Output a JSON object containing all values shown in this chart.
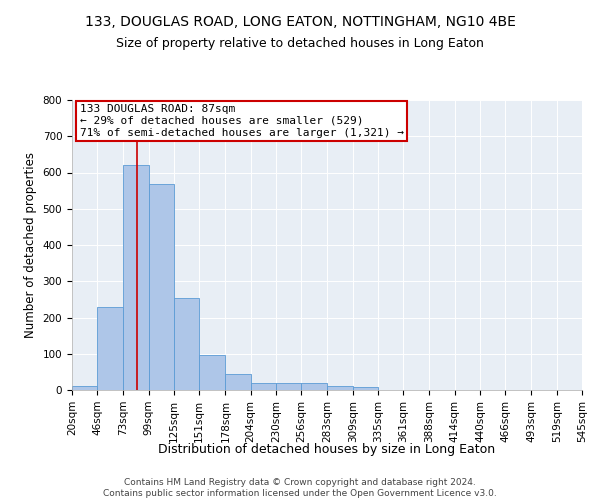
{
  "title": "133, DOUGLAS ROAD, LONG EATON, NOTTINGHAM, NG10 4BE",
  "subtitle": "Size of property relative to detached houses in Long Eaton",
  "xlabel": "Distribution of detached houses by size in Long Eaton",
  "ylabel": "Number of detached properties",
  "bin_edges": [
    20,
    46,
    73,
    99,
    125,
    151,
    178,
    204,
    230,
    256,
    283,
    309,
    335,
    361,
    388,
    414,
    440,
    466,
    493,
    519,
    545
  ],
  "bar_heights": [
    10,
    228,
    620,
    567,
    253,
    96,
    43,
    20,
    20,
    18,
    10,
    8,
    0,
    0,
    0,
    0,
    0,
    0,
    0,
    0
  ],
  "bar_color": "#aec6e8",
  "bar_edge_color": "#5b9bd5",
  "vline_x": 87,
  "vline_color": "#cc0000",
  "annotation_text": "133 DOUGLAS ROAD: 87sqm\n← 29% of detached houses are smaller (529)\n71% of semi-detached houses are larger (1,321) →",
  "annotation_box_color": "#cc0000",
  "ylim": [
    0,
    800
  ],
  "yticks": [
    0,
    100,
    200,
    300,
    400,
    500,
    600,
    700,
    800
  ],
  "plot_bg_color": "#e8eef5",
  "footer_text": "Contains HM Land Registry data © Crown copyright and database right 2024.\nContains public sector information licensed under the Open Government Licence v3.0.",
  "title_fontsize": 10,
  "subtitle_fontsize": 9,
  "xlabel_fontsize": 9,
  "ylabel_fontsize": 8.5,
  "tick_fontsize": 7.5,
  "annotation_fontsize": 8,
  "footer_fontsize": 6.5
}
